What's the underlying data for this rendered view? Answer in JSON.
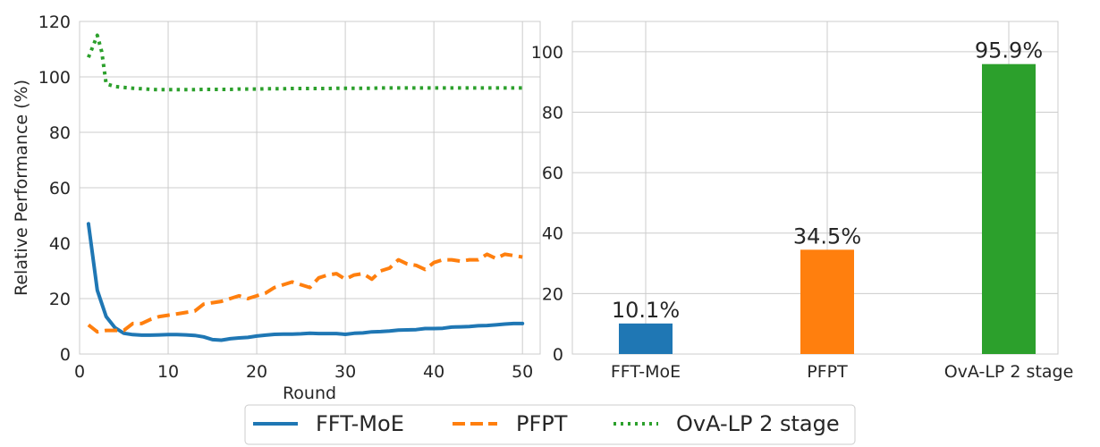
{
  "chart_data": [
    {
      "type": "line",
      "title": "",
      "xlabel": "Round",
      "ylabel": "Relative Performance (%)",
      "xlim": [
        0,
        52
      ],
      "ylim": [
        0,
        120
      ],
      "xticks": [
        0,
        10,
        20,
        30,
        40,
        50
      ],
      "yticks": [
        0,
        20,
        40,
        60,
        80,
        100,
        120
      ],
      "grid": true,
      "legend_position": "bottom-center",
      "series": [
        {
          "name": "FFT-MoE",
          "color": "#1f77b4",
          "style": "solid",
          "x": [
            1,
            2,
            3,
            4,
            5,
            6,
            7,
            8,
            9,
            10,
            11,
            12,
            13,
            14,
            15,
            16,
            17,
            18,
            19,
            20,
            21,
            22,
            23,
            24,
            25,
            26,
            27,
            28,
            29,
            30,
            31,
            32,
            33,
            34,
            35,
            36,
            37,
            38,
            39,
            40,
            41,
            42,
            43,
            44,
            45,
            46,
            47,
            48,
            49,
            50
          ],
          "y": [
            47,
            23,
            13.5,
            9.5,
            7.5,
            7,
            6.8,
            6.8,
            6.9,
            7,
            7,
            6.9,
            6.7,
            6.2,
            5.2,
            5,
            5.5,
            5.8,
            6,
            6.5,
            6.8,
            7.1,
            7.2,
            7.2,
            7.3,
            7.5,
            7.4,
            7.4,
            7.4,
            7.1,
            7.5,
            7.6,
            8,
            8.1,
            8.3,
            8.6,
            8.7,
            8.8,
            9.2,
            9.2,
            9.3,
            9.7,
            9.8,
            9.9,
            10.2,
            10.3,
            10.5,
            10.8,
            11,
            11
          ]
        },
        {
          "name": "PFPT",
          "color": "#ff7f0e",
          "style": "dashed",
          "x": [
            1,
            2,
            3,
            4,
            5,
            6,
            7,
            8,
            9,
            10,
            11,
            12,
            13,
            14,
            15,
            16,
            17,
            18,
            19,
            20,
            21,
            22,
            23,
            24,
            25,
            26,
            27,
            28,
            29,
            30,
            31,
            32,
            33,
            34,
            35,
            36,
            37,
            38,
            39,
            40,
            41,
            42,
            43,
            44,
            45,
            46,
            47,
            48,
            49,
            50
          ],
          "y": [
            10.5,
            8,
            8.5,
            8.5,
            8.5,
            11,
            11,
            12.5,
            13.5,
            14,
            14.5,
            15,
            15.5,
            18,
            18.5,
            19,
            20,
            21,
            20,
            21,
            22,
            24,
            25,
            26,
            25,
            24,
            27.5,
            28.5,
            29,
            27,
            28.5,
            29,
            27,
            30,
            31,
            34,
            32.5,
            32,
            30.5,
            33,
            34,
            34,
            33.5,
            34,
            34,
            36,
            34.5,
            36,
            35.5,
            35
          ]
        },
        {
          "name": "OvA-LP 2 stage",
          "color": "#2ca02c",
          "style": "dotted",
          "x": [
            1,
            1.5,
            2,
            2.5,
            3,
            4,
            5,
            6,
            7,
            8,
            9,
            10,
            11,
            12,
            13,
            14,
            15,
            16,
            17,
            18,
            19,
            20,
            21,
            22,
            23,
            24,
            25,
            26,
            27,
            28,
            29,
            30,
            31,
            32,
            33,
            34,
            35,
            36,
            37,
            38,
            39,
            40,
            41,
            42,
            43,
            44,
            45,
            46,
            47,
            48,
            49,
            50
          ],
          "y": [
            107,
            111,
            115,
            109,
            97.5,
            96.5,
            96.2,
            95.9,
            95.7,
            95.5,
            95.4,
            95.4,
            95.4,
            95.4,
            95.4,
            95.5,
            95.5,
            95.5,
            95.5,
            95.6,
            95.6,
            95.6,
            95.7,
            95.7,
            95.7,
            95.8,
            95.8,
            95.8,
            95.8,
            95.8,
            95.9,
            95.9,
            95.9,
            95.9,
            95.9,
            96,
            96,
            96,
            96,
            96,
            96,
            96,
            96,
            96,
            96,
            96,
            96,
            96,
            96,
            96,
            96,
            96
          ]
        }
      ]
    },
    {
      "type": "bar",
      "title": "",
      "xlabel": "",
      "ylabel": "",
      "ylim": [
        0,
        110
      ],
      "yticks": [
        0,
        20,
        40,
        60,
        80,
        100
      ],
      "grid": true,
      "categories": [
        "FFT-MoE",
        "PFPT",
        "OvA-LP 2 stage"
      ],
      "values": [
        10.1,
        34.5,
        95.9
      ],
      "data_labels": [
        "10.1%",
        "34.5%",
        "95.9%"
      ],
      "colors": [
        "#1f77b4",
        "#ff7f0e",
        "#2ca02c"
      ]
    }
  ],
  "legend": {
    "entries": [
      "FFT-MoE",
      "PFPT",
      "OvA-LP 2 stage"
    ]
  }
}
